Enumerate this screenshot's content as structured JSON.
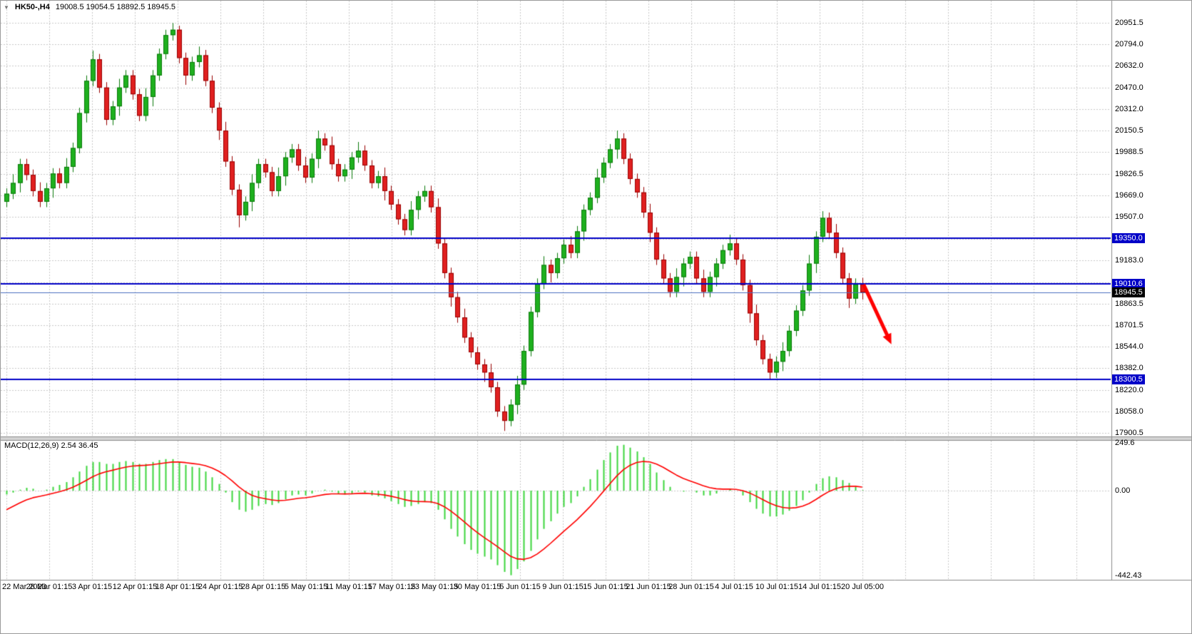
{
  "header": {
    "collapse_icon": "▼",
    "symbol_period": "HK50-,H4",
    "ohlc": "19008.5 19054.5 18892.5 18945.5"
  },
  "indicator_label": "MACD(12,26,9) 2.54 36.45",
  "price_axis": {
    "gridlines": [
      {
        "v": 20951.5,
        "t": "20951.5"
      },
      {
        "v": 20794.0,
        "t": "20794.0"
      },
      {
        "v": 20632.0,
        "t": "20632.0"
      },
      {
        "v": 20470.0,
        "t": "20470.0"
      },
      {
        "v": 20312.0,
        "t": "20312.0"
      },
      {
        "v": 20150.5,
        "t": "20150.5"
      },
      {
        "v": 19988.5,
        "t": "19988.5"
      },
      {
        "v": 19826.5,
        "t": "19826.5"
      },
      {
        "v": 19669.0,
        "t": "19669.0"
      },
      {
        "v": 19507.0,
        "t": "19507.0"
      },
      {
        "v": 19345.0,
        "t": null
      },
      {
        "v": 19183.0,
        "t": "19183.0"
      },
      {
        "v": 19021.0,
        "t": null
      },
      {
        "v": 18863.5,
        "t": "18863.5"
      },
      {
        "v": 18701.5,
        "t": "18701.5"
      },
      {
        "v": 18544.0,
        "t": "18544.0"
      },
      {
        "v": 18382.0,
        "t": "18382.0"
      },
      {
        "v": 18220.0,
        "t": "18220.0"
      },
      {
        "v": 18058.0,
        "t": "18058.0"
      },
      {
        "v": 17900.5,
        "t": "17900.5"
      }
    ]
  },
  "levels": [
    {
      "price": 19350.0,
      "label": "19350.0"
    },
    {
      "price": 19010.6,
      "label": "19010.6"
    },
    {
      "price": 18300.5,
      "label": "18300.5"
    }
  ],
  "bid": {
    "price": 18945.5,
    "label": "18945.5"
  },
  "macd_axis": [
    {
      "v": 249.6,
      "t": "249.6"
    },
    {
      "v": 0,
      "t": "0.00"
    },
    {
      "v": -442.43,
      "t": "-442.43"
    }
  ],
  "annotations": [
    {
      "type": "arrow",
      "from": {
        "bar": 129.2,
        "price": 19005
      },
      "to": {
        "bar": 133.4,
        "price": 18560
      },
      "color": "#FF0000"
    }
  ],
  "colors": {
    "background": "#FFFFFF",
    "grid": "#C9C9C9",
    "axis_line": "#8A8A8A",
    "text": "#000000",
    "bull": "#1EB01E",
    "bull_border": "#0B7A0B",
    "bear": "#E02020",
    "bear_border": "#990000",
    "level_blue": "#0000C8",
    "bid_line": "#4A6FBF",
    "bid_tag_bg": "#000000",
    "tag_text": "#FFFFFF",
    "macd_hist": "#3CD63C",
    "macd_signal": "#FF0000",
    "separator": "#D4D4D4"
  },
  "chart_data": {
    "type": "candlestick",
    "symbol": "HK50-",
    "timeframe": "H4",
    "title": "HK50-,H4",
    "current_ohlc": {
      "open": 19008.5,
      "high": 19054.5,
      "low": 18892.5,
      "close": 18945.5
    },
    "price_range": {
      "top": 20951.5,
      "bottom": 17900.5
    },
    "horizontal_levels": [
      19350.0,
      19010.6,
      18300.5
    ],
    "bid_price": 18945.5,
    "x_tick_labels": [
      "22 Mar 2023",
      "28 Mar 01:15",
      "3 Apr 01:15",
      "12 Apr 01:15",
      "18 Apr 01:15",
      "24 Apr 01:15",
      "28 Apr 01:15",
      "5 May 01:15",
      "11 May 01:15",
      "17 May 01:15",
      "23 May 01:15",
      "30 May 01:15",
      "5 Jun 01:15",
      "9 Jun 01:15",
      "15 Jun 01:15",
      "21 Jun 01:15",
      "28 Jun 01:15",
      "4 Jul 01:15",
      "10 Jul 01:15",
      "14 Jul 01:15",
      "20 Jul 05:00"
    ],
    "candles": [
      [
        19620,
        19720,
        19580,
        19680
      ],
      [
        19680,
        19825,
        19640,
        19760
      ],
      [
        19760,
        19940,
        19690,
        19900
      ],
      [
        19900,
        19940,
        19780,
        19820
      ],
      [
        19820,
        19860,
        19660,
        19700
      ],
      [
        19700,
        19765,
        19580,
        19620
      ],
      [
        19620,
        19760,
        19580,
        19720
      ],
      [
        19720,
        19870,
        19650,
        19830
      ],
      [
        19830,
        19870,
        19720,
        19760
      ],
      [
        19760,
        19945,
        19720,
        19880
      ],
      [
        19880,
        20060,
        19840,
        20020
      ],
      [
        20020,
        20320,
        19980,
        20280
      ],
      [
        20280,
        20560,
        20210,
        20520
      ],
      [
        20520,
        20745,
        20480,
        20680
      ],
      [
        20680,
        20720,
        20430,
        20470
      ],
      [
        20470,
        20510,
        20190,
        20230
      ],
      [
        20230,
        20370,
        20190,
        20330
      ],
      [
        20330,
        20535,
        20260,
        20470
      ],
      [
        20470,
        20600,
        20430,
        20560
      ],
      [
        20560,
        20600,
        20380,
        20420
      ],
      [
        20420,
        20460,
        20220,
        20260
      ],
      [
        20260,
        20465,
        20220,
        20400
      ],
      [
        20400,
        20600,
        20330,
        20560
      ],
      [
        20560,
        20760,
        20520,
        20720
      ],
      [
        20720,
        20900,
        20680,
        20860
      ],
      [
        20860,
        20950,
        20820,
        20900
      ],
      [
        20900,
        20930,
        20650,
        20690
      ],
      [
        20690,
        20730,
        20490,
        20560
      ],
      [
        20560,
        20700,
        20520,
        20660
      ],
      [
        20660,
        20775,
        20620,
        20710
      ],
      [
        20710,
        20750,
        20480,
        20520
      ],
      [
        20520,
        20560,
        20280,
        20320
      ],
      [
        20320,
        20360,
        20080,
        20150
      ],
      [
        20150,
        20215,
        19880,
        19920
      ],
      [
        19920,
        19960,
        19670,
        19710
      ],
      [
        19710,
        19750,
        19430,
        19520
      ],
      [
        19520,
        19660,
        19480,
        19620
      ],
      [
        19620,
        19825,
        19550,
        19760
      ],
      [
        19760,
        19940,
        19720,
        19900
      ],
      [
        19900,
        19940,
        19800,
        19840
      ],
      [
        19840,
        19880,
        19660,
        19700
      ],
      [
        19700,
        19875,
        19660,
        19810
      ],
      [
        19810,
        19990,
        19740,
        19950
      ],
      [
        19950,
        20050,
        19910,
        20010
      ],
      [
        20010,
        20050,
        19850,
        19890
      ],
      [
        19890,
        19955,
        19760,
        19800
      ],
      [
        19800,
        19980,
        19760,
        19940
      ],
      [
        19940,
        20150,
        19870,
        20090
      ],
      [
        20090,
        20130,
        20000,
        20040
      ],
      [
        20040,
        20105,
        19860,
        19900
      ],
      [
        19900,
        19940,
        19770,
        19810
      ],
      [
        19810,
        19900,
        19770,
        19860
      ],
      [
        19860,
        19990,
        19790,
        19950
      ],
      [
        19950,
        20065,
        19910,
        20000
      ],
      [
        20000,
        20040,
        19850,
        19890
      ],
      [
        19890,
        19930,
        19720,
        19760
      ],
      [
        19760,
        19850,
        19720,
        19810
      ],
      [
        19810,
        19875,
        19630,
        19700
      ],
      [
        19700,
        19740,
        19560,
        19600
      ],
      [
        19600,
        19640,
        19450,
        19490
      ],
      [
        19490,
        19530,
        19370,
        19410
      ],
      [
        19410,
        19625,
        19370,
        19560
      ],
      [
        19560,
        19700,
        19490,
        19660
      ],
      [
        19660,
        19740,
        19620,
        19700
      ],
      [
        19700,
        19740,
        19540,
        19580
      ],
      [
        19580,
        19645,
        19270,
        19310
      ],
      [
        19310,
        19350,
        19050,
        19090
      ],
      [
        19090,
        19130,
        18840,
        18910
      ],
      [
        18910,
        18950,
        18720,
        18760
      ],
      [
        18760,
        18825,
        18570,
        18610
      ],
      [
        18610,
        18650,
        18460,
        18500
      ],
      [
        18500,
        18540,
        18370,
        18410
      ],
      [
        18410,
        18450,
        18280,
        18350
      ],
      [
        18350,
        18415,
        18200,
        18240
      ],
      [
        18240,
        18280,
        18020,
        18060
      ],
      [
        18060,
        18100,
        17915,
        17990
      ],
      [
        17990,
        18150,
        17950,
        18110
      ],
      [
        18110,
        18325,
        18040,
        18260
      ],
      [
        18260,
        18550,
        18220,
        18510
      ],
      [
        18510,
        18840,
        18470,
        18800
      ],
      [
        18800,
        19050,
        18760,
        19010
      ],
      [
        19010,
        19215,
        18970,
        19150
      ],
      [
        19150,
        19190,
        19020,
        19090
      ],
      [
        19090,
        19240,
        19050,
        19200
      ],
      [
        19200,
        19340,
        19160,
        19300
      ],
      [
        19300,
        19365,
        19200,
        19240
      ],
      [
        19240,
        19440,
        19200,
        19400
      ],
      [
        19400,
        19600,
        19330,
        19560
      ],
      [
        19560,
        19690,
        19520,
        19650
      ],
      [
        19650,
        19865,
        19610,
        19800
      ],
      [
        19800,
        19950,
        19760,
        19910
      ],
      [
        19910,
        20050,
        19870,
        20010
      ],
      [
        20010,
        20150,
        19940,
        20090
      ],
      [
        20090,
        20130,
        19900,
        19940
      ],
      [
        19940,
        19980,
        19750,
        19790
      ],
      [
        19790,
        19830,
        19650,
        19690
      ],
      [
        19690,
        19730,
        19500,
        19540
      ],
      [
        19540,
        19605,
        19320,
        19390
      ],
      [
        19390,
        19430,
        19150,
        19190
      ],
      [
        19190,
        19230,
        19010,
        19050
      ],
      [
        19050,
        19090,
        18910,
        18950
      ],
      [
        18950,
        19125,
        18910,
        19060
      ],
      [
        19060,
        19200,
        18990,
        19160
      ],
      [
        19160,
        19250,
        19120,
        19210
      ],
      [
        19210,
        19250,
        19010,
        19050
      ],
      [
        19050,
        19115,
        18910,
        18950
      ],
      [
        18950,
        19100,
        18910,
        19060
      ],
      [
        19060,
        19200,
        18990,
        19160
      ],
      [
        19160,
        19300,
        19120,
        19260
      ],
      [
        19260,
        19375,
        19220,
        19310
      ],
      [
        19310,
        19350,
        19150,
        19190
      ],
      [
        19190,
        19230,
        18960,
        19000
      ],
      [
        19000,
        19040,
        18720,
        18790
      ],
      [
        18790,
        18855,
        18550,
        18590
      ],
      [
        18590,
        18630,
        18410,
        18450
      ],
      [
        18450,
        18490,
        18300,
        18350
      ],
      [
        18350,
        18470,
        18310,
        18430
      ],
      [
        18430,
        18575,
        18360,
        18510
      ],
      [
        18510,
        18700,
        18470,
        18660
      ],
      [
        18660,
        18850,
        18620,
        18810
      ],
      [
        18810,
        19000,
        18770,
        18960
      ],
      [
        18960,
        19225,
        18920,
        19160
      ],
      [
        19160,
        19400,
        19090,
        19360
      ],
      [
        19360,
        19550,
        19320,
        19500
      ],
      [
        19500,
        19540,
        19350,
        19390
      ],
      [
        19390,
        19455,
        19200,
        19240
      ],
      [
        19240,
        19280,
        19010,
        19050
      ],
      [
        19050,
        19090,
        18830,
        18900
      ],
      [
        18900,
        19050,
        18860,
        19008.5
      ],
      [
        19008.5,
        19054.5,
        18892.5,
        18945.5
      ]
    ],
    "indicator": {
      "type": "macd",
      "params": [
        12,
        26,
        9
      ],
      "main_last": 2.54,
      "signal_last": 36.45,
      "scale_max": 249.6,
      "scale_min": -442.43,
      "values": [
        -20,
        -10,
        5,
        15,
        10,
        0,
        5,
        20,
        30,
        45,
        70,
        100,
        130,
        150,
        150,
        140,
        140,
        150,
        155,
        150,
        140,
        140,
        150,
        160,
        165,
        165,
        150,
        135,
        125,
        120,
        100,
        70,
        35,
        -10,
        -60,
        -100,
        -110,
        -100,
        -80,
        -70,
        -75,
        -65,
        -45,
        -25,
        -20,
        -25,
        -15,
        0,
        5,
        -5,
        -15,
        -20,
        -15,
        -5,
        -10,
        -25,
        -30,
        -40,
        -55,
        -70,
        -85,
        -80,
        -70,
        -60,
        -65,
        -100,
        -150,
        -200,
        -240,
        -280,
        -310,
        -330,
        -345,
        -360,
        -390,
        -425,
        -442.43,
        -410,
        -370,
        -315,
        -255,
        -200,
        -160,
        -120,
        -85,
        -65,
        -30,
        20,
        60,
        110,
        160,
        200,
        235,
        240,
        225,
        205,
        175,
        140,
        95,
        55,
        20,
        0,
        -5,
        0,
        -10,
        -25,
        -25,
        -15,
        0,
        10,
        0,
        -25,
        -60,
        -95,
        -120,
        -135,
        -135,
        -125,
        -105,
        -80,
        -50,
        -10,
        35,
        65,
        75,
        70,
        55,
        40,
        20,
        2.54
      ]
    }
  }
}
